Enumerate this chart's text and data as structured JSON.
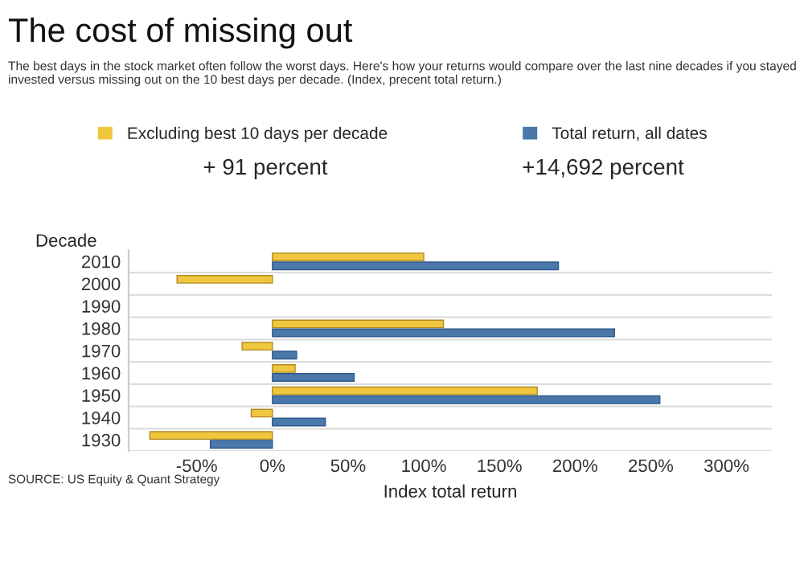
{
  "chart_data": {
    "type": "bar",
    "orientation": "horizontal",
    "title": "The cost of missing out",
    "subtitle": "The best days in the stock market often follow the worst days. Here's how your returns would compare over the last nine decades if you stayed invested versus missing out on the 10 best days per decade. (Index, precent total return.)",
    "ylabel": "Decade",
    "xlabel": "Index total return",
    "categories": [
      "2010",
      "2000",
      "1990",
      "1980",
      "1970",
      "1960",
      "1950",
      "1940",
      "1930"
    ],
    "series": [
      {
        "name": "Excluding best 10 days per decade",
        "color": "#f0c63f",
        "values": [
          100,
          -63,
          null,
          113,
          -20,
          15,
          175,
          -14,
          -81
        ]
      },
      {
        "name": "Total return, all dates",
        "color": "#4a78ab",
        "values": [
          189,
          null,
          null,
          226,
          16,
          54,
          256,
          35,
          -41
        ]
      }
    ],
    "xlim": [
      -95,
      330
    ],
    "xticks": [
      {
        "value": -50,
        "label": "-50%"
      },
      {
        "value": 0,
        "label": "0%"
      },
      {
        "value": 50,
        "label": "50%"
      },
      {
        "value": 100,
        "label": "100%"
      },
      {
        "value": 150,
        "label": "150%"
      },
      {
        "value": 200,
        "label": "200%"
      },
      {
        "value": 250,
        "label": "250%"
      },
      {
        "value": 300,
        "label": "300%"
      }
    ],
    "annotations": [
      "+ 91 percent",
      "+14,692 percent",
      "SOURCE: US Equity & Quant Strategy"
    ],
    "legend": "top",
    "grid": "y"
  }
}
